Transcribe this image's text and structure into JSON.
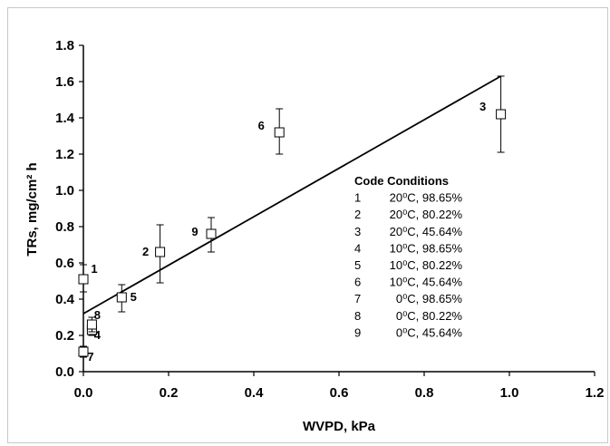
{
  "chart_data": {
    "type": "scatter",
    "xlabel": "WVPD, kPa",
    "ylabel": "TRs, mg/cm² h",
    "xlim": [
      0,
      1.2
    ],
    "ylim": [
      0,
      1.8
    ],
    "x_ticks": [
      "0.0",
      "0.2",
      "0.4",
      "0.6",
      "0.8",
      "1.0",
      "1.2"
    ],
    "y_ticks": [
      "0.0",
      "0.2",
      "0.4",
      "0.6",
      "0.8",
      "1.0",
      "1.2",
      "1.4",
      "1.6",
      "1.8"
    ],
    "grid": false,
    "points": [
      {
        "label": "1",
        "x": 0.0,
        "y": 0.51,
        "err_low": 0.44,
        "err_high": 0.59
      },
      {
        "label": "2",
        "x": 0.18,
        "y": 0.66,
        "err_low": 0.49,
        "err_high": 0.81
      },
      {
        "label": "3",
        "x": 0.98,
        "y": 1.42,
        "err_low": 1.21,
        "err_high": 1.63
      },
      {
        "label": "4",
        "x": 0.02,
        "y": 0.23,
        "err_low": 0.2,
        "err_high": 0.26
      },
      {
        "label": "5",
        "x": 0.09,
        "y": 0.41,
        "err_low": 0.33,
        "err_high": 0.48
      },
      {
        "label": "6",
        "x": 0.46,
        "y": 1.32,
        "err_low": 1.2,
        "err_high": 1.45
      },
      {
        "label": "7",
        "x": 0.0,
        "y": 0.11,
        "err_low": 0.08,
        "err_high": 0.14
      },
      {
        "label": "8",
        "x": 0.02,
        "y": 0.26,
        "err_low": 0.22,
        "err_high": 0.3
      },
      {
        "label": "9",
        "x": 0.3,
        "y": 0.76,
        "err_low": 0.66,
        "err_high": 0.85
      }
    ],
    "trendline": {
      "x": [
        0.0,
        0.98
      ],
      "y": [
        0.32,
        1.63
      ]
    },
    "legend": {
      "title": "Code Conditions",
      "rows": [
        {
          "code": "1",
          "condition": "20⁰C, 98.65%"
        },
        {
          "code": "2",
          "condition": "20⁰C, 80.22%"
        },
        {
          "code": "3",
          "condition": "20⁰C, 45.64%"
        },
        {
          "code": "4",
          "condition": "10⁰C, 98.65%"
        },
        {
          "code": "5",
          "condition": "10⁰C, 80.22%"
        },
        {
          "code": "6",
          "condition": "10⁰C, 45.64%"
        },
        {
          "code": "7",
          "condition": "0⁰C, 98.65%"
        },
        {
          "code": "8",
          "condition": "0⁰C, 80.22%"
        },
        {
          "code": "9",
          "condition": "0⁰C, 45.64%"
        }
      ]
    }
  }
}
